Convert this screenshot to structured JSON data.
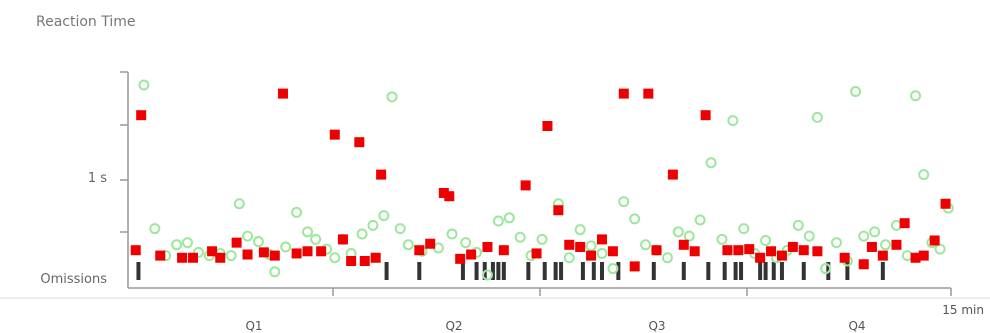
{
  "chart_data": {
    "type": "scatter",
    "title": "Reaction Time",
    "y_tick_labels": [
      {
        "value": 1.0,
        "label": "1 s"
      },
      {
        "value": 0,
        "label": "Omissions"
      }
    ],
    "x_end_label": "15 min",
    "quarters": [
      "Q1",
      "Q2",
      "Q3",
      "Q4"
    ],
    "xlim": [
      0,
      15
    ],
    "ylim": [
      0,
      2.0
    ],
    "colors": {
      "correct": "#9be89b",
      "error": "#ee0000",
      "omission": "#333333",
      "axis": "#999999"
    },
    "series": [
      {
        "marker": "circle",
        "points": [
          [
            0.2,
            1.88
          ],
          [
            0.4,
            0.55
          ],
          [
            0.6,
            0.3
          ],
          [
            0.8,
            0.4
          ],
          [
            1.0,
            0.42
          ],
          [
            1.2,
            0.33
          ],
          [
            1.4,
            0.3
          ],
          [
            1.6,
            0.32
          ],
          [
            1.8,
            0.3
          ],
          [
            1.95,
            0.78
          ],
          [
            2.1,
            0.48
          ],
          [
            2.3,
            0.43
          ],
          [
            2.5,
            0.31
          ],
          [
            2.6,
            0.15
          ],
          [
            2.8,
            0.38
          ],
          [
            3.0,
            0.7
          ],
          [
            3.2,
            0.52
          ],
          [
            3.35,
            0.45
          ],
          [
            3.55,
            0.36
          ],
          [
            3.7,
            0.28
          ],
          [
            3.85,
            0.45
          ],
          [
            4.0,
            0.32
          ],
          [
            4.2,
            0.5
          ],
          [
            4.4,
            0.58
          ],
          [
            4.6,
            0.67
          ],
          [
            4.75,
            1.77
          ],
          [
            4.9,
            0.55
          ],
          [
            5.05,
            0.4
          ],
          [
            5.3,
            0.34
          ],
          [
            5.6,
            0.37
          ],
          [
            5.85,
            0.5
          ],
          [
            6.1,
            0.42
          ],
          [
            6.3,
            0.33
          ],
          [
            6.5,
            0.12
          ],
          [
            6.7,
            0.62
          ],
          [
            6.9,
            0.65
          ],
          [
            7.1,
            0.47
          ],
          [
            7.3,
            0.3
          ],
          [
            7.5,
            0.45
          ],
          [
            7.8,
            0.78
          ],
          [
            8.0,
            0.28
          ],
          [
            8.2,
            0.54
          ],
          [
            8.4,
            0.39
          ],
          [
            8.6,
            0.32
          ],
          [
            8.8,
            0.18
          ],
          [
            9.0,
            0.8
          ],
          [
            9.2,
            0.64
          ],
          [
            9.4,
            0.4
          ],
          [
            9.6,
            0.35
          ],
          [
            9.8,
            0.28
          ],
          [
            10.0,
            0.52
          ],
          [
            10.2,
            0.48
          ],
          [
            10.4,
            0.63
          ],
          [
            10.6,
            1.16
          ],
          [
            10.8,
            0.45
          ],
          [
            11.0,
            1.55
          ],
          [
            11.2,
            0.55
          ],
          [
            11.4,
            0.32
          ],
          [
            11.6,
            0.44
          ],
          [
            11.8,
            0.28
          ],
          [
            12.0,
            0.35
          ],
          [
            12.2,
            0.58
          ],
          [
            12.4,
            0.48
          ],
          [
            12.55,
            1.58
          ],
          [
            12.7,
            0.18
          ],
          [
            12.9,
            0.42
          ],
          [
            13.1,
            0.25
          ],
          [
            13.25,
            1.82
          ],
          [
            13.4,
            0.48
          ],
          [
            13.6,
            0.52
          ],
          [
            13.8,
            0.4
          ],
          [
            14.0,
            0.58
          ],
          [
            14.2,
            0.3
          ],
          [
            14.35,
            1.78
          ],
          [
            14.5,
            1.05
          ],
          [
            14.65,
            0.42
          ],
          [
            14.8,
            0.36
          ],
          [
            14.95,
            0.74
          ]
        ]
      },
      {
        "marker": "square",
        "points": [
          [
            0.05,
            0.35
          ],
          [
            0.15,
            1.6
          ],
          [
            0.5,
            0.3
          ],
          [
            0.9,
            0.28
          ],
          [
            1.1,
            0.28
          ],
          [
            1.45,
            0.34
          ],
          [
            1.6,
            0.28
          ],
          [
            1.9,
            0.42
          ],
          [
            2.1,
            0.31
          ],
          [
            2.4,
            0.33
          ],
          [
            2.6,
            0.3
          ],
          [
            2.75,
            1.8
          ],
          [
            3.0,
            0.32
          ],
          [
            3.2,
            0.34
          ],
          [
            3.45,
            0.34
          ],
          [
            3.7,
            1.42
          ],
          [
            3.85,
            0.45
          ],
          [
            4.0,
            0.25
          ],
          [
            4.15,
            1.35
          ],
          [
            4.25,
            0.25
          ],
          [
            4.45,
            0.28
          ],
          [
            4.55,
            1.05
          ],
          [
            5.25,
            0.35
          ],
          [
            5.45,
            0.41
          ],
          [
            5.7,
            0.88
          ],
          [
            5.8,
            0.85
          ],
          [
            6.0,
            0.27
          ],
          [
            6.2,
            0.31
          ],
          [
            6.5,
            0.38
          ],
          [
            6.8,
            0.35
          ],
          [
            7.2,
            0.95
          ],
          [
            7.4,
            0.32
          ],
          [
            7.6,
            1.5
          ],
          [
            7.8,
            0.72
          ],
          [
            8.0,
            0.4
          ],
          [
            8.2,
            0.38
          ],
          [
            8.4,
            0.3
          ],
          [
            8.6,
            0.45
          ],
          [
            8.8,
            0.34
          ],
          [
            9.0,
            1.8
          ],
          [
            9.2,
            0.2
          ],
          [
            9.45,
            1.8
          ],
          [
            9.6,
            0.35
          ],
          [
            9.9,
            1.05
          ],
          [
            10.1,
            0.4
          ],
          [
            10.3,
            0.34
          ],
          [
            10.5,
            1.6
          ],
          [
            10.9,
            0.35
          ],
          [
            11.1,
            0.35
          ],
          [
            11.3,
            0.36
          ],
          [
            11.5,
            0.28
          ],
          [
            11.7,
            0.34
          ],
          [
            11.9,
            0.3
          ],
          [
            12.1,
            0.38
          ],
          [
            12.3,
            0.35
          ],
          [
            12.55,
            0.34
          ],
          [
            13.05,
            0.28
          ],
          [
            13.4,
            0.22
          ],
          [
            13.55,
            0.38
          ],
          [
            13.75,
            0.3
          ],
          [
            14.0,
            0.4
          ],
          [
            14.15,
            0.6
          ],
          [
            14.35,
            0.28
          ],
          [
            14.5,
            0.3
          ],
          [
            14.7,
            0.44
          ],
          [
            14.9,
            0.78
          ]
        ]
      }
    ],
    "omissions": [
      0.1,
      4.65,
      5.25,
      6.05,
      6.3,
      6.45,
      6.6,
      6.7,
      6.8,
      7.25,
      7.55,
      7.75,
      7.85,
      8.25,
      8.45,
      8.6,
      8.9,
      9.55,
      10.1,
      10.55,
      10.85,
      11.05,
      11.15,
      11.5,
      11.6,
      11.75,
      11.9,
      12.3,
      12.75,
      13.1,
      13.75
    ]
  }
}
